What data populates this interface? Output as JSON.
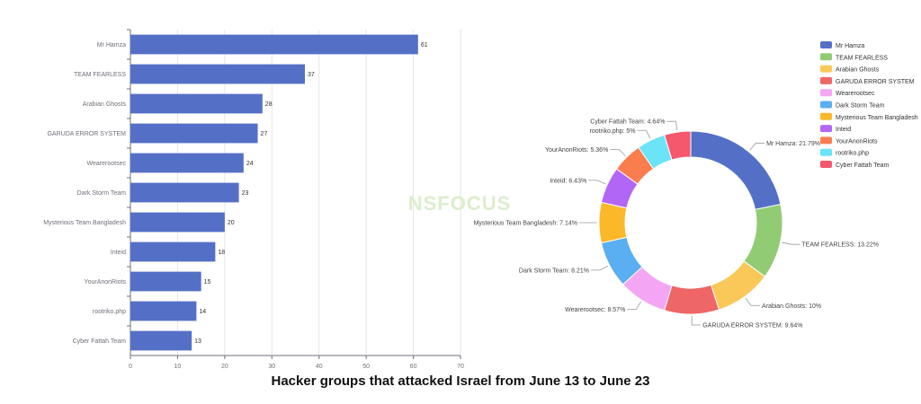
{
  "watermark": "NSFOCUS",
  "caption": "Hacker groups that attacked Israel from June 13 to June 23",
  "chart_data": [
    {
      "type": "bar",
      "orientation": "horizontal",
      "categories": [
        "Mr Hamza",
        "TEAM FEARLESS",
        "Arabian Ghosts",
        "GARUDA ERROR SYSTEM",
        "Wearerootsec",
        "Dark Storm Team",
        "Mysterious Team Bangladesh",
        "Inteid",
        "YourAnonRiots",
        "rootriko.php",
        "Cyber Fattah Team"
      ],
      "values": [
        61,
        37,
        28,
        27,
        24,
        23,
        20,
        18,
        15,
        14,
        13
      ],
      "xlim": [
        0,
        70
      ],
      "xticks": [
        0,
        10,
        20,
        30,
        40,
        50,
        60,
        70
      ],
      "grid": true,
      "bar_color": "#5470c6",
      "data_labels": true
    },
    {
      "type": "pie",
      "style": "donut",
      "legend_position": "top-right",
      "slices": [
        {
          "name": "Mr Hamza",
          "value": 21.79,
          "label": "Mr Hamza: 21.79%",
          "color": "#5470c6"
        },
        {
          "name": "TEAM FEARLESS",
          "value": 13.22,
          "label": "TEAM FEARLESS: 13.22%",
          "color": "#91cc75"
        },
        {
          "name": "Arabian Ghosts",
          "value": 10,
          "label": "Arabian Ghosts: 10%",
          "color": "#fac858"
        },
        {
          "name": "GARUDA ERROR SYSTEM",
          "value": 9.64,
          "label": "GARUDA ERROR SYSTEM: 9.64%",
          "color": "#ee6666"
        },
        {
          "name": "Wearerootsec",
          "value": 8.57,
          "label": "Wearerootsec: 8.57%",
          "color": "#f4a6f4"
        },
        {
          "name": "Dark Storm Team",
          "value": 8.21,
          "label": "Dark Storm Team: 8.21%",
          "color": "#5aaef2"
        },
        {
          "name": "Mysterious Team Bangladesh",
          "value": 7.14,
          "label": "Mysterious Team Bangladesh: 7.14%",
          "color": "#fbb829"
        },
        {
          "name": "Inteid",
          "value": 6.43,
          "label": "Inteid: 6.43%",
          "color": "#b266f5"
        },
        {
          "name": "YourAnonRiots",
          "value": 5.36,
          "label": "YourAnonRiots: 5.36%",
          "color": "#fa7d4d"
        },
        {
          "name": "rootriko.php",
          "value": 5,
          "label": "rootriko.php: 5%",
          "color": "#6ae4f6"
        },
        {
          "name": "Cyber Fattah Team",
          "value": 4.64,
          "label": "Cyber Fattah Team: 4.64%",
          "color": "#f5576c"
        }
      ]
    }
  ]
}
